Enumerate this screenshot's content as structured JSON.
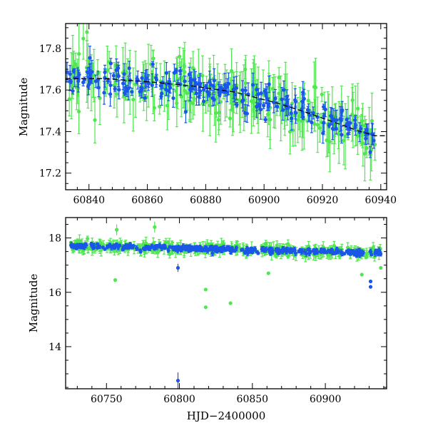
{
  "colors": {
    "green": "#52e652",
    "blue": "#1a56e8",
    "fit": "#000000"
  },
  "chart_data": [
    {
      "type": "scatter",
      "title": "",
      "xlabel": "",
      "ylabel": "Magnitude",
      "xlim": [
        60832,
        60942
      ],
      "ylim": [
        17.92,
        17.12
      ],
      "y_inverted": true,
      "xticks": [
        60840,
        60860,
        60880,
        60900,
        60920,
        60940
      ],
      "yticks": [
        17.2,
        17.4,
        17.6,
        17.8
      ],
      "grid": false,
      "legend": "none",
      "fit_curve": {
        "x": [
          60832,
          60845,
          60860,
          60875,
          60890,
          60905,
          60915,
          60925,
          60932,
          60938,
          60942
        ],
        "y": [
          17.655,
          17.655,
          17.64,
          17.62,
          17.59,
          17.535,
          17.49,
          17.44,
          17.405,
          17.38,
          17.38
        ]
      },
      "series": [
        {
          "color": "green",
          "x_range": [
            60832,
            60938
          ],
          "count": 230,
          "err": [
            0.03,
            0.16
          ],
          "seed": 11
        },
        {
          "color": "blue",
          "x_range": [
            60832,
            60938
          ],
          "count": 230,
          "err": [
            0.01,
            0.06
          ],
          "seed": 23
        }
      ]
    },
    {
      "type": "scatter",
      "title": "",
      "xlabel": "HJD−2400000",
      "ylabel": "Magnitude",
      "xlim": [
        60722,
        60942
      ],
      "ylim": [
        18.75,
        12.45
      ],
      "y_inverted": true,
      "xticks": [
        60750,
        60800,
        60850,
        60900
      ],
      "yticks": [
        14,
        16,
        18
      ],
      "grid": false,
      "legend": "none",
      "series": [
        {
          "color": "green",
          "x_range": [
            60725,
            60938
          ],
          "count": 320,
          "err": [
            0.05,
            0.25
          ],
          "seed": 37
        },
        {
          "color": "blue",
          "x_range": [
            60725,
            60938
          ],
          "count": 340,
          "err": [
            0.02,
            0.1
          ],
          "seed": 51
        }
      ],
      "outliers": [
        {
          "color": "blue",
          "x": 60799,
          "y": 12.75,
          "err": 0.3
        },
        {
          "color": "green",
          "x": 60818,
          "y": 15.45,
          "err": 0.0
        },
        {
          "color": "green",
          "x": 60835,
          "y": 15.6,
          "err": 0.0
        },
        {
          "color": "green",
          "x": 60818,
          "y": 16.1,
          "err": 0.0
        },
        {
          "color": "green",
          "x": 60756,
          "y": 16.45,
          "err": 0.0
        },
        {
          "color": "blue",
          "x": 60799,
          "y": 16.9,
          "err": 0.15
        },
        {
          "color": "blue",
          "x": 60931,
          "y": 16.2,
          "err": 0.0
        },
        {
          "color": "blue",
          "x": 60931,
          "y": 16.4,
          "err": 0.0
        },
        {
          "color": "green",
          "x": 60861,
          "y": 16.7,
          "err": 0.0
        },
        {
          "color": "green",
          "x": 60925,
          "y": 16.65,
          "err": 0.0
        },
        {
          "color": "green",
          "x": 60938,
          "y": 16.9,
          "err": 0.0
        },
        {
          "color": "green",
          "x": 60757,
          "y": 18.3,
          "err": 0.2
        },
        {
          "color": "green",
          "x": 60783,
          "y": 18.4,
          "err": 0.2
        }
      ]
    }
  ]
}
